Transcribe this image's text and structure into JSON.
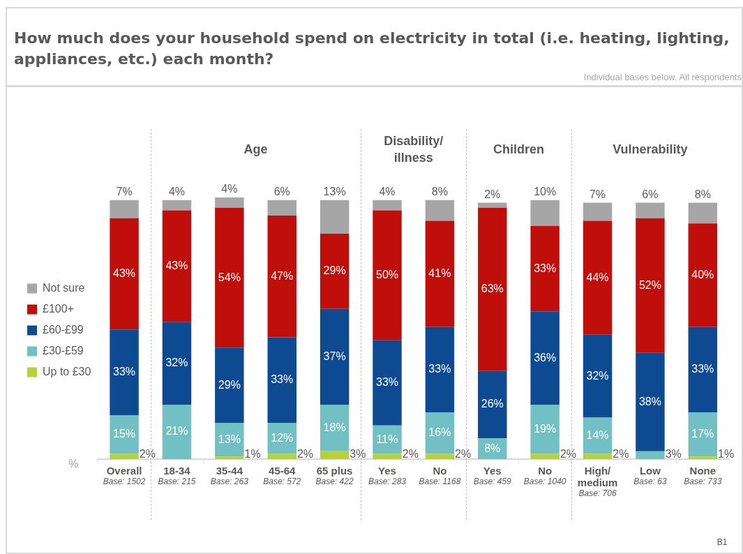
{
  "chart_data": {
    "type": "bar",
    "stacked": true,
    "title": "How much does your household spend on electricity in total (i.e. heating, lighting, appliances, etc.) each month?",
    "subtitle": "Individual bases below. All respondents",
    "ylabel": "%",
    "categories": [
      "Overall\nBase: 1502",
      "18-34\nBase: 215",
      "35-44\nBase: 263",
      "45-64\nBase: 572",
      "65 plus\nBase: 422",
      "Yes\nBase: 283",
      "No\nBase: 1168",
      "Yes\nBase: 459",
      "No\nBase: 1040",
      "High/\nmedium\nBase: 706",
      "Low\nBase: 63",
      "None\nBase: 733"
    ],
    "series": [
      {
        "name": "Up to £30",
        "color": "#b5d334",
        "values": [
          2,
          0,
          1,
          2,
          3,
          2,
          2,
          0,
          2,
          2,
          0,
          1
        ],
        "value_labels": [
          "2%",
          null,
          "1%",
          "2%",
          "3%",
          "2%",
          "2%",
          null,
          "2%",
          "2%",
          null,
          "1%"
        ]
      },
      {
        "name": "£30-£59",
        "color": "#72bfc4",
        "values": [
          15,
          21,
          13,
          12,
          18,
          11,
          16,
          8,
          19,
          14,
          3,
          17
        ],
        "value_labels": [
          "15%",
          "21%",
          "13%",
          "12%",
          "18%",
          "11%",
          "16%",
          "8%",
          "19%",
          "14%",
          "3%",
          "17%"
        ]
      },
      {
        "name": "£60-£99",
        "color": "#0d4a91",
        "values": [
          33,
          32,
          29,
          33,
          37,
          33,
          33,
          26,
          36,
          32,
          38,
          33
        ],
        "value_labels": [
          "33%",
          "32%",
          "29%",
          "33%",
          "37%",
          "33%",
          "33%",
          "26%",
          "36%",
          "32%",
          "38%",
          "33%"
        ]
      },
      {
        "name": "£100+",
        "color": "#c00f0a",
        "values": [
          43,
          43,
          54,
          47,
          29,
          50,
          41,
          63,
          33,
          44,
          52,
          40
        ],
        "value_labels": [
          "43%",
          "43%",
          "54%",
          "47%",
          "29%",
          "50%",
          "41%",
          "63%",
          "33%",
          "44%",
          "52%",
          "40%"
        ]
      },
      {
        "name": "Not sure",
        "color": "#a6a6a6",
        "values": [
          7,
          4,
          4,
          6,
          13,
          4,
          8,
          2,
          10,
          7,
          6,
          8
        ],
        "value_labels": [
          "7%",
          "4%",
          "4%",
          "6%",
          "13%",
          "4%",
          "8%",
          "2%",
          "10%",
          "7%",
          "6%",
          "8%"
        ]
      }
    ],
    "legend": "left",
    "annotations": [
      "Age",
      "Disability/\nillness",
      "Children",
      "Vulnerability",
      "B1"
    ]
  }
}
